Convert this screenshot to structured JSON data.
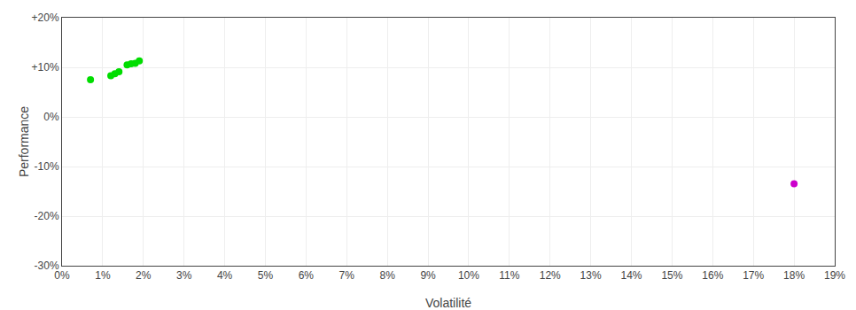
{
  "chart_data": {
    "type": "scatter",
    "xlabel": "Volatilité",
    "ylabel": "Performance",
    "series": [
      {
        "color": "#00dd00",
        "x": [
          0.007,
          0.012,
          0.013,
          0.014,
          0.016,
          0.017,
          0.018,
          0.019
        ],
        "values": [
          0.075,
          0.083,
          0.087,
          0.091,
          0.105,
          0.107,
          0.108,
          0.113
        ]
      },
      {
        "color": "#cc00cc",
        "x": [
          0.18
        ],
        "values": [
          -0.135
        ]
      }
    ],
    "xlim": [
      0,
      0.19
    ],
    "ylim": [
      -0.3,
      0.2
    ],
    "xticks": [
      {
        "value": 0.0,
        "label": "0%"
      },
      {
        "value": 0.01,
        "label": "1%"
      },
      {
        "value": 0.02,
        "label": "2%"
      },
      {
        "value": 0.03,
        "label": "3%"
      },
      {
        "value": 0.04,
        "label": "4%"
      },
      {
        "value": 0.05,
        "label": "5%"
      },
      {
        "value": 0.06,
        "label": "6%"
      },
      {
        "value": 0.07,
        "label": "7%"
      },
      {
        "value": 0.08,
        "label": "8%"
      },
      {
        "value": 0.09,
        "label": "9%"
      },
      {
        "value": 0.1,
        "label": "10%"
      },
      {
        "value": 0.11,
        "label": "11%"
      },
      {
        "value": 0.12,
        "label": "12%"
      },
      {
        "value": 0.13,
        "label": "13%"
      },
      {
        "value": 0.14,
        "label": "14%"
      },
      {
        "value": 0.15,
        "label": "15%"
      },
      {
        "value": 0.16,
        "label": "16%"
      },
      {
        "value": 0.17,
        "label": "17%"
      },
      {
        "value": 0.18,
        "label": "18%"
      },
      {
        "value": 0.19,
        "label": "19%"
      }
    ],
    "yticks": [
      {
        "value": -0.3,
        "label": "-30%"
      },
      {
        "value": -0.2,
        "label": "-20%"
      },
      {
        "value": -0.1,
        "label": "-10%"
      },
      {
        "value": 0.0,
        "label": "0%"
      },
      {
        "value": 0.1,
        "label": "+10%"
      },
      {
        "value": 0.2,
        "label": "+20%"
      }
    ],
    "grid": true
  }
}
